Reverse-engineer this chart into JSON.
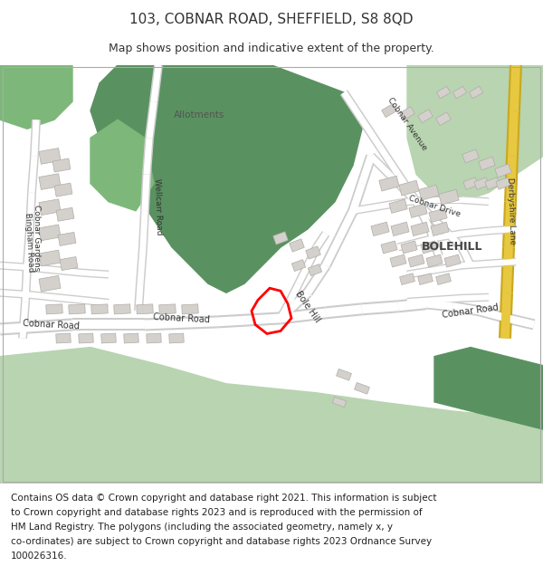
{
  "title": "103, COBNAR ROAD, SHEFFIELD, S8 8QD",
  "subtitle": "Map shows position and indicative extent of the property.",
  "footer": "Contains OS data © Crown copyright and database right 2021. This information is subject to Crown copyright and database rights 2023 and is reproduced with the permission of HM Land Registry. The polygons (including the associated geometry, namely x, y co-ordinates) are subject to Crown copyright and database rights 2023 Ordnance Survey 100026316.",
  "bg_color": "#f5f5f0",
  "map_bg": "#ffffff",
  "green_dark": "#5a9160",
  "green_mid": "#7db87a",
  "green_light": "#b8d4b0",
  "green_pale": "#d4e8cc",
  "road_color": "#ffffff",
  "building_color": "#d4d0cc",
  "building_outline": "#b0aca8",
  "road_outline": "#cccccc",
  "yellow_road": "#e8c840",
  "red_polygon": "#ff0000",
  "text_color": "#333333",
  "title_fontsize": 11,
  "subtitle_fontsize": 9,
  "footer_fontsize": 7.5
}
